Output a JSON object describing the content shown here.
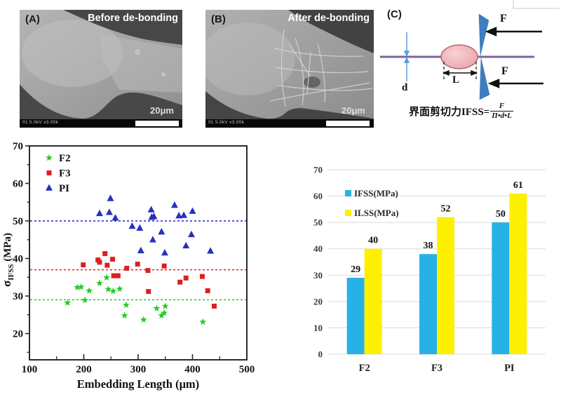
{
  "figure": {
    "panel_a": {
      "label": "(A)",
      "title": "Before de-bonding",
      "scale_text": "20μm",
      "info_bar": "01 5.0kV x3.00k"
    },
    "panel_b": {
      "label": "(B)",
      "title": "After de-bonding",
      "scale_text": "20μm",
      "info_bar": "01 5.0kV x3.00k"
    },
    "panel_c": {
      "label": "(C)",
      "d_label": "d",
      "l_label": "L",
      "f_label_top": "F",
      "f_label_bottom": "F",
      "formula_prefix": "界面剪切力IFSS=",
      "formula_numerator": "F",
      "formula_denominator": "Π•d•L"
    }
  },
  "chart_data": [
    {
      "type": "scatter",
      "title": "",
      "xlabel": "Embedding Length (μm)",
      "ylabel": "σIFSS (MPa)",
      "ylabel_parts": {
        "sym": "σ",
        "sub": "IFSS",
        "unit": " (MPa)"
      },
      "xlim": [
        100,
        500
      ],
      "ylim": [
        13,
        70
      ],
      "xticks": [
        100,
        200,
        300,
        400,
        500
      ],
      "yticks": [
        20,
        30,
        40,
        50,
        60,
        70
      ],
      "xminor": [
        150,
        250,
        350,
        450
      ],
      "yminor": [
        15,
        25,
        35,
        45,
        55,
        65
      ],
      "legend_position": "top-left",
      "frame_color": "#2b2b2b",
      "series": [
        {
          "name": "F2",
          "marker": "star",
          "color": "#22cc22",
          "points": [
            [
              170,
              28.2
            ],
            [
              188,
              32.3
            ],
            [
              195,
              32.4
            ],
            [
              202,
              28.9
            ],
            [
              210,
              31.4
            ],
            [
              229,
              33.4
            ],
            [
              242,
              34.9
            ],
            [
              245,
              31.8
            ],
            [
              254,
              31.3
            ],
            [
              266,
              31.9
            ],
            [
              275,
              24.8
            ],
            [
              278,
              27.6
            ],
            [
              310,
              23.7
            ],
            [
              334,
              26.7
            ],
            [
              343,
              24.8
            ],
            [
              348,
              25.5
            ],
            [
              350,
              27.3
            ],
            [
              419,
              23.1
            ]
          ]
        },
        {
          "name": "F3",
          "marker": "square",
          "color": "#dd1f1f",
          "points": [
            [
              199,
              38.3
            ],
            [
              226,
              39.6
            ],
            [
              229,
              39.0
            ],
            [
              239,
              41.3
            ],
            [
              243,
              38.2
            ],
            [
              253,
              39.8
            ],
            [
              255,
              35.4
            ],
            [
              263,
              35.4
            ],
            [
              279,
              37.4
            ],
            [
              299,
              38.5
            ],
            [
              318,
              36.8
            ],
            [
              319,
              31.2
            ],
            [
              348,
              38.0
            ],
            [
              377,
              33.7
            ],
            [
              388,
              34.8
            ],
            [
              418,
              35.2
            ],
            [
              428,
              31.4
            ],
            [
              440,
              27.3
            ]
          ]
        },
        {
          "name": "PI",
          "marker": "triangle",
          "color": "#2730bd",
          "points": [
            [
              229,
              52.0
            ],
            [
              247,
              52.3
            ],
            [
              249,
              56.0
            ],
            [
              258,
              50.8
            ],
            [
              289,
              48.6
            ],
            [
              303,
              48.1
            ],
            [
              305,
              42.1
            ],
            [
              324,
              53.0
            ],
            [
              325,
              51.0
            ],
            [
              329,
              51.2
            ],
            [
              327,
              45.0
            ],
            [
              343,
              47.1
            ],
            [
              349,
              41.5
            ],
            [
              367,
              54.2
            ],
            [
              375,
              51.4
            ],
            [
              384,
              51.5
            ],
            [
              388,
              43.4
            ],
            [
              398,
              46.4
            ],
            [
              400,
              52.6
            ],
            [
              433,
              42.0
            ]
          ]
        }
      ],
      "reference_lines": [
        {
          "value": 29,
          "color": "#22cc22"
        },
        {
          "value": 37,
          "color": "#dd1f1f"
        },
        {
          "value": 50,
          "color": "#1f1fcc"
        }
      ]
    },
    {
      "type": "bar",
      "title": "",
      "categories": [
        "F2",
        "F3",
        "PI"
      ],
      "series": [
        {
          "name": "IFSS(MPa)",
          "color": "#27b2e7",
          "values": [
            29,
            38,
            50
          ]
        },
        {
          "name": "ILSS(MPa)",
          "color": "#fdf000",
          "values": [
            40,
            52,
            61
          ]
        }
      ],
      "ylim": [
        0,
        70
      ],
      "yticks": [
        0,
        10,
        20,
        30,
        40,
        50,
        60,
        70
      ],
      "grid": true,
      "grid_color": "#d9d9d9",
      "data_labels": true,
      "legend_position": "upper-left"
    }
  ]
}
